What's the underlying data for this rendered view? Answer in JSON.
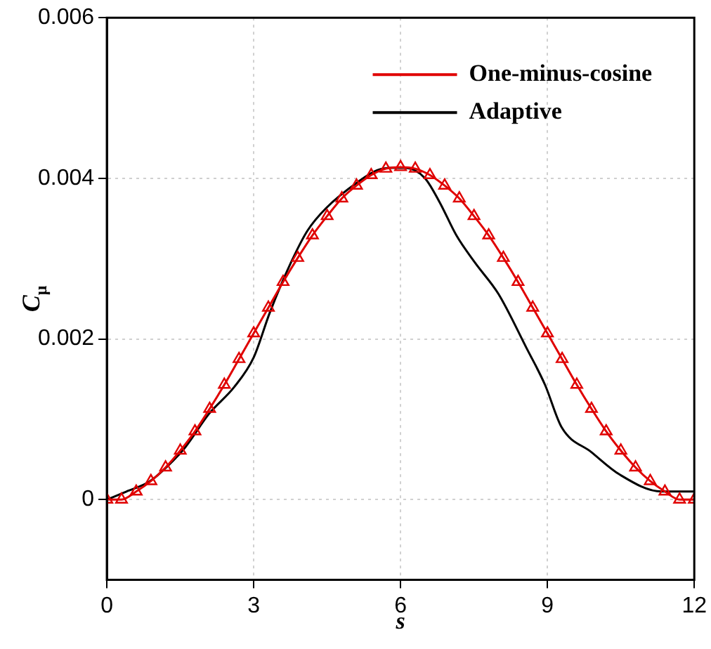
{
  "chart_data": {
    "type": "line",
    "xlabel": "s",
    "ylabel": "C$_{μ}$",
    "xlim": [
      0,
      12
    ],
    "xticks": [
      0,
      3,
      6,
      9,
      12
    ],
    "ylim": [
      -0.001,
      0.006
    ],
    "yticks": [
      0,
      0.002,
      0.004,
      0.006
    ],
    "grid": true,
    "legend": "top right",
    "series": [
      {
        "name": "One-minus-cosine",
        "color": "#e00000",
        "marker": "triangle",
        "x": [
          0,
          0.3,
          0.6,
          0.9,
          1.2,
          1.5,
          1.8,
          2.1,
          2.4,
          2.7,
          3,
          3.3,
          3.6,
          3.9,
          4.2,
          4.5,
          4.8,
          5.1,
          5.4,
          5.7,
          6,
          6.3,
          6.6,
          6.9,
          7.2,
          7.5,
          7.8,
          8.1,
          8.4,
          8.7,
          9,
          9.3,
          9.6,
          9.9,
          10.2,
          10.5,
          10.8,
          11.1,
          11.4,
          11.7,
          12
        ],
        "values": [
          0,
          0,
          0.0001,
          0.00023,
          0.0004,
          0.00061,
          0.00085,
          0.00113,
          0.00143,
          0.00175,
          0.00207,
          0.00239,
          0.00271,
          0.00301,
          0.00329,
          0.00353,
          0.00375,
          0.00391,
          0.00404,
          0.00412,
          0.00414,
          0.00412,
          0.00404,
          0.00391,
          0.00375,
          0.00353,
          0.00329,
          0.00301,
          0.00271,
          0.00239,
          0.00207,
          0.00175,
          0.00143,
          0.00113,
          0.00085,
          0.00061,
          0.0004,
          0.00023,
          0.0001,
          0,
          0
        ]
      },
      {
        "name": "Adaptive",
        "color": "#000000",
        "marker": "none",
        "x": [
          0,
          0.4,
          0.86,
          1.23,
          1.6,
          2.09,
          2.6,
          3,
          3.33,
          3.76,
          4.1,
          4.48,
          5.14,
          5.52,
          5.8,
          6.1,
          6.5,
          6.8,
          7.14,
          7.52,
          8,
          8.57,
          8.95,
          9.29,
          9.9,
          10.48,
          11.33,
          11.9,
          12
        ],
        "values": [
          0,
          0.0001,
          0.00022,
          0.00041,
          0.00065,
          0.00107,
          0.0014,
          0.00177,
          0.00233,
          0.00295,
          0.00335,
          0.00363,
          0.00396,
          0.0041,
          0.00413,
          0.00413,
          0.004,
          0.0037,
          0.00329,
          0.00295,
          0.00256,
          0.00189,
          0.00143,
          0.0009,
          0.00059,
          0.00031,
          0.0001,
          0.0001,
          0.0001
        ]
      }
    ]
  }
}
